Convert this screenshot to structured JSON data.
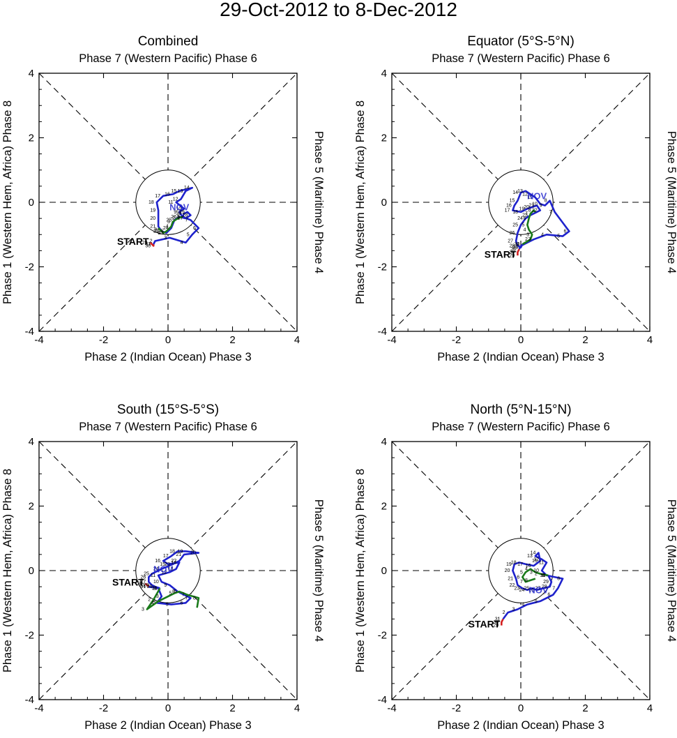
{
  "figure_title": "29-Oct-2012 to 8-Dec-2012",
  "colors": {
    "oct": "#d42020",
    "nov": "#1e22cc",
    "dec": "#1a7a1a",
    "axes": "#000000"
  },
  "chart_data": [
    {
      "type": "line",
      "title": "Combined",
      "top_label": "Phase 7 (Western Pacific) Phase 6",
      "bottom_label": "Phase 2 (Indian Ocean) Phase 3",
      "left_label": "Phase 1 (Western Hem, Africa) Phase 8",
      "right_label": "Phase 5 (Maritime) Phase 4",
      "xlim": [
        -4,
        4
      ],
      "ylim": [
        -4,
        4
      ],
      "ticks": [
        "-4",
        "-2",
        "0",
        "2",
        "4"
      ],
      "start_label": "START",
      "month_label": "NOV",
      "month_label_pos": [
        0.35,
        -0.25
      ],
      "series": [
        {
          "name": "Oct",
          "points": [
            [
              -0.55,
              -1.25
            ],
            [
              -0.45,
              -1.35
            ],
            [
              -0.45,
              -1.3
            ]
          ],
          "days": [
            "29",
            "30",
            "31"
          ]
        },
        {
          "name": "Nov",
          "points": [
            [
              -0.45,
              -1.3
            ],
            [
              -0.4,
              -1.2
            ],
            [
              0.05,
              -1.1
            ],
            [
              0.55,
              -1.25
            ],
            [
              0.75,
              -1.0
            ],
            [
              0.95,
              -0.8
            ],
            [
              0.7,
              -0.55
            ],
            [
              0.45,
              -0.45
            ],
            [
              0.35,
              -0.3
            ],
            [
              0.5,
              -0.2
            ],
            [
              0.25,
              0.0
            ],
            [
              0.4,
              0.1
            ],
            [
              0.55,
              0.35
            ],
            [
              0.75,
              0.45
            ],
            [
              0.35,
              0.35
            ],
            [
              0.15,
              0.25
            ],
            [
              -0.15,
              0.2
            ],
            [
              -0.35,
              0.0
            ],
            [
              -0.3,
              -0.25
            ],
            [
              -0.3,
              -0.5
            ],
            [
              -0.3,
              -0.75
            ],
            [
              -0.2,
              -0.9
            ],
            [
              -0.05,
              -0.95
            ],
            [
              0.1,
              -0.8
            ],
            [
              0.2,
              -0.55
            ],
            [
              0.35,
              -0.45
            ],
            [
              0.55,
              -0.5
            ],
            [
              0.7,
              -0.4
            ],
            [
              0.6,
              -0.3
            ],
            [
              0.5,
              -0.35
            ],
            [
              0.45,
              -0.45
            ]
          ],
          "days": [
            "1",
            "2",
            "3",
            "4",
            "5",
            "6",
            "7",
            "8",
            "9",
            "10",
            "11",
            "12",
            "13",
            "14",
            "15",
            "16",
            "17",
            "18",
            "19",
            "20",
            "21",
            "22",
            "23",
            "24",
            "25",
            "26",
            "27",
            "28",
            "29",
            "30"
          ]
        },
        {
          "name": "Dec",
          "points": [
            [
              0.45,
              -0.45
            ],
            [
              0.3,
              -0.5
            ],
            [
              0.15,
              -0.6
            ],
            [
              0.1,
              -0.75
            ],
            [
              -0.05,
              -0.9
            ],
            [
              -0.15,
              -0.95
            ],
            [
              -0.2,
              -0.9
            ],
            [
              -0.25,
              -0.85
            ],
            [
              -0.3,
              -0.8
            ]
          ],
          "days": [
            "1",
            "2",
            "3",
            "4",
            "5",
            "6",
            "7",
            "8"
          ]
        }
      ]
    },
    {
      "type": "line",
      "title": "Equator (5°S-5°N)",
      "top_label": "Phase 7 (Western Pacific) Phase 6",
      "bottom_label": "Phase 2 (Indian Ocean) Phase 3",
      "left_label": "Phase 1 (Western Hem, Africa) Phase 8",
      "right_label": "Phase 5 (Maritime) Phase 4",
      "xlim": [
        -4,
        4
      ],
      "ylim": [
        -4,
        4
      ],
      "ticks": [
        "-4",
        "-2",
        "0",
        "2",
        "4"
      ],
      "start_label": "START",
      "month_label": "NOV",
      "month_label_pos": [
        0.5,
        0.1
      ],
      "series": [
        {
          "name": "Oct",
          "points": [
            [
              -0.1,
              -1.65
            ],
            [
              -0.1,
              -1.55
            ],
            [
              -0.05,
              -1.45
            ]
          ],
          "days": [
            "29",
            "30",
            "31"
          ]
        },
        {
          "name": "Nov",
          "points": [
            [
              -0.05,
              -1.45
            ],
            [
              0.0,
              -1.35
            ],
            [
              0.4,
              -1.15
            ],
            [
              0.8,
              -1.0
            ],
            [
              1.3,
              -1.05
            ],
            [
              1.5,
              -0.9
            ],
            [
              1.05,
              -0.3
            ],
            [
              0.9,
              0.05
            ],
            [
              0.75,
              -0.1
            ],
            [
              0.6,
              -0.05
            ],
            [
              0.45,
              0.15
            ],
            [
              0.3,
              0.25
            ],
            [
              0.15,
              0.35
            ],
            [
              0.0,
              0.3
            ],
            [
              -0.1,
              0.05
            ],
            [
              -0.2,
              -0.1
            ],
            [
              -0.25,
              -0.25
            ],
            [
              0.0,
              -0.3
            ],
            [
              0.2,
              -0.2
            ],
            [
              0.35,
              -0.15
            ],
            [
              0.5,
              -0.1
            ],
            [
              0.6,
              -0.25
            ],
            [
              0.3,
              -0.4
            ],
            [
              0.15,
              -0.5
            ],
            [
              0.0,
              -0.7
            ],
            [
              -0.1,
              -0.95
            ],
            [
              -0.15,
              -1.2
            ],
            [
              -0.1,
              -1.35
            ],
            [
              0.0,
              -1.4
            ],
            [
              0.05,
              -1.3
            ]
          ],
          "days": [
            "1",
            "2",
            "3",
            "4",
            "5",
            "6",
            "7",
            "8",
            "9",
            "10",
            "11",
            "12",
            "13",
            "14",
            "15",
            "16",
            "17",
            "18",
            "19",
            "20",
            "21",
            "22",
            "23",
            "24",
            "25",
            "26",
            "27",
            "28",
            "29",
            "30"
          ]
        },
        {
          "name": "Dec",
          "points": [
            [
              0.05,
              -1.3
            ],
            [
              0.3,
              -1.15
            ],
            [
              0.35,
              -1.0
            ],
            [
              0.25,
              -0.85
            ],
            [
              0.2,
              -0.7
            ],
            [
              0.25,
              -0.5
            ],
            [
              0.3,
              -0.35
            ],
            [
              0.4,
              -0.25
            ],
            [
              0.45,
              -0.3
            ]
          ],
          "days": [
            "1",
            "2",
            "3",
            "4",
            "5",
            "6",
            "7",
            "8"
          ]
        }
      ]
    },
    {
      "type": "line",
      "title": "South (15°S-5°S)",
      "top_label": "Phase 7 (Western Pacific) Phase 6",
      "bottom_label": "Phase 2 (Indian Ocean) Phase 3",
      "left_label": "Phase 1 (Western Hem, Africa) Phase 8",
      "right_label": "Phase 5 (Maritime) Phase 4",
      "xlim": [
        -4,
        4
      ],
      "ylim": [
        -4,
        4
      ],
      "ticks": [
        "-4",
        "-2",
        "0",
        "2",
        "4"
      ],
      "start_label": "START",
      "month_label": "NOV",
      "month_label_pos": [
        -0.15,
        -0.05
      ],
      "series": [
        {
          "name": "Oct",
          "points": [
            [
              -0.7,
              -0.4
            ],
            [
              -0.65,
              -0.45
            ],
            [
              -0.6,
              -0.5
            ]
          ],
          "days": [
            "29",
            "30",
            "31"
          ]
        },
        {
          "name": "Nov",
          "points": [
            [
              -0.6,
              -0.5
            ],
            [
              -0.3,
              -0.55
            ],
            [
              -0.2,
              -0.8
            ],
            [
              -0.35,
              -1.0
            ],
            [
              0.1,
              -1.05
            ],
            [
              0.55,
              -1.0
            ],
            [
              0.7,
              -0.85
            ],
            [
              0.3,
              -0.65
            ],
            [
              0.05,
              -0.45
            ],
            [
              -0.2,
              -0.35
            ],
            [
              -0.3,
              -0.15
            ],
            [
              0.05,
              -0.05
            ],
            [
              0.25,
              0.05
            ],
            [
              0.35,
              0.25
            ],
            [
              0.0,
              0.2
            ],
            [
              -0.15,
              0.3
            ],
            [
              0.1,
              0.45
            ],
            [
              0.3,
              0.6
            ],
            [
              0.55,
              0.6
            ],
            [
              0.95,
              0.55
            ],
            [
              0.5,
              0.5
            ],
            [
              0.35,
              0.3
            ],
            [
              0.15,
              0.2
            ],
            [
              -0.2,
              0.05
            ],
            [
              -0.5,
              -0.1
            ],
            [
              -0.6,
              -0.2
            ],
            [
              -0.6,
              -0.35
            ],
            [
              -0.5,
              -0.45
            ],
            [
              -0.4,
              -0.5
            ],
            [
              -0.25,
              -0.55
            ]
          ],
          "days": [
            "1",
            "2",
            "3",
            "4",
            "5",
            "6",
            "7",
            "8",
            "9",
            "10",
            "11",
            "12",
            "13",
            "14",
            "15",
            "16",
            "17",
            "18",
            "19",
            "20",
            "21",
            "22",
            "23",
            "24",
            "25",
            "26",
            "27",
            "28",
            "29",
            "30"
          ]
        },
        {
          "name": "Dec",
          "points": [
            [
              -0.25,
              -0.55
            ],
            [
              -0.45,
              -0.9
            ],
            [
              -0.65,
              -1.2
            ],
            [
              -0.3,
              -0.95
            ],
            [
              0.2,
              -0.7
            ],
            [
              0.35,
              -0.65
            ],
            [
              0.6,
              -0.75
            ],
            [
              0.95,
              -0.85
            ],
            [
              0.9,
              -1.15
            ]
          ],
          "days": [
            "1",
            "2",
            "3",
            "4",
            "5",
            "6",
            "7",
            "8"
          ]
        }
      ]
    },
    {
      "type": "line",
      "title": "North (5°N-15°N)",
      "top_label": "Phase 7 (Western Pacific) Phase 6",
      "bottom_label": "Phase 2 (Indian Ocean) Phase 3",
      "left_label": "Phase 1 (Western Hem, Africa) Phase 8",
      "right_label": "Phase 5 (Maritime) Phase 4",
      "xlim": [
        -4,
        4
      ],
      "ylim": [
        -4,
        4
      ],
      "ticks": [
        "-4",
        "-2",
        "0",
        "2",
        "4"
      ],
      "start_label": "START",
      "month_label": "NOV",
      "month_label_pos": [
        0.55,
        -0.7
      ],
      "series": [
        {
          "name": "Oct",
          "points": [
            [
              -0.6,
              -1.7
            ],
            [
              -0.6,
              -1.6
            ],
            [
              -0.55,
              -1.5
            ]
          ],
          "days": [
            "29",
            "30",
            "31"
          ]
        },
        {
          "name": "Nov",
          "points": [
            [
              -0.55,
              -1.5
            ],
            [
              -0.4,
              -1.3
            ],
            [
              -0.1,
              -1.2
            ],
            [
              0.2,
              -1.05
            ],
            [
              0.6,
              -0.95
            ],
            [
              1.0,
              -0.75
            ],
            [
              1.15,
              -0.55
            ],
            [
              1.3,
              -0.25
            ],
            [
              0.8,
              -0.15
            ],
            [
              0.65,
              0.0
            ],
            [
              0.8,
              0.25
            ],
            [
              0.65,
              0.35
            ],
            [
              0.45,
              0.45
            ],
            [
              0.55,
              0.55
            ],
            [
              0.6,
              0.3
            ],
            [
              0.4,
              0.15
            ],
            [
              0.15,
              0.2
            ],
            [
              -0.05,
              0.25
            ],
            [
              -0.2,
              0.2
            ],
            [
              -0.25,
              0.0
            ],
            [
              -0.15,
              -0.25
            ],
            [
              -0.1,
              -0.45
            ],
            [
              0.05,
              -0.55
            ],
            [
              0.2,
              -0.6
            ],
            [
              0.35,
              -0.55
            ],
            [
              0.5,
              -0.6
            ],
            [
              0.7,
              -0.55
            ],
            [
              0.9,
              -0.5
            ],
            [
              0.95,
              -0.35
            ],
            [
              0.85,
              -0.15
            ]
          ],
          "days": [
            "1",
            "2",
            "3",
            "4",
            "5",
            "6",
            "7",
            "8",
            "9",
            "10",
            "11",
            "12",
            "13",
            "14",
            "15",
            "16",
            "17",
            "18",
            "19",
            "20",
            "21",
            "22",
            "23",
            "24",
            "25",
            "26",
            "27",
            "28",
            "29",
            "30"
          ]
        },
        {
          "name": "Dec",
          "points": [
            [
              0.85,
              -0.15
            ],
            [
              0.6,
              -0.1
            ],
            [
              0.45,
              -0.05
            ],
            [
              0.3,
              0.05
            ],
            [
              0.15,
              -0.05
            ],
            [
              0.05,
              -0.2
            ],
            [
              0.15,
              -0.35
            ],
            [
              0.3,
              -0.3
            ],
            [
              0.45,
              -0.25
            ]
          ],
          "days": [
            "1",
            "2",
            "3",
            "4",
            "5",
            "6",
            "7",
            "8"
          ]
        }
      ]
    }
  ]
}
